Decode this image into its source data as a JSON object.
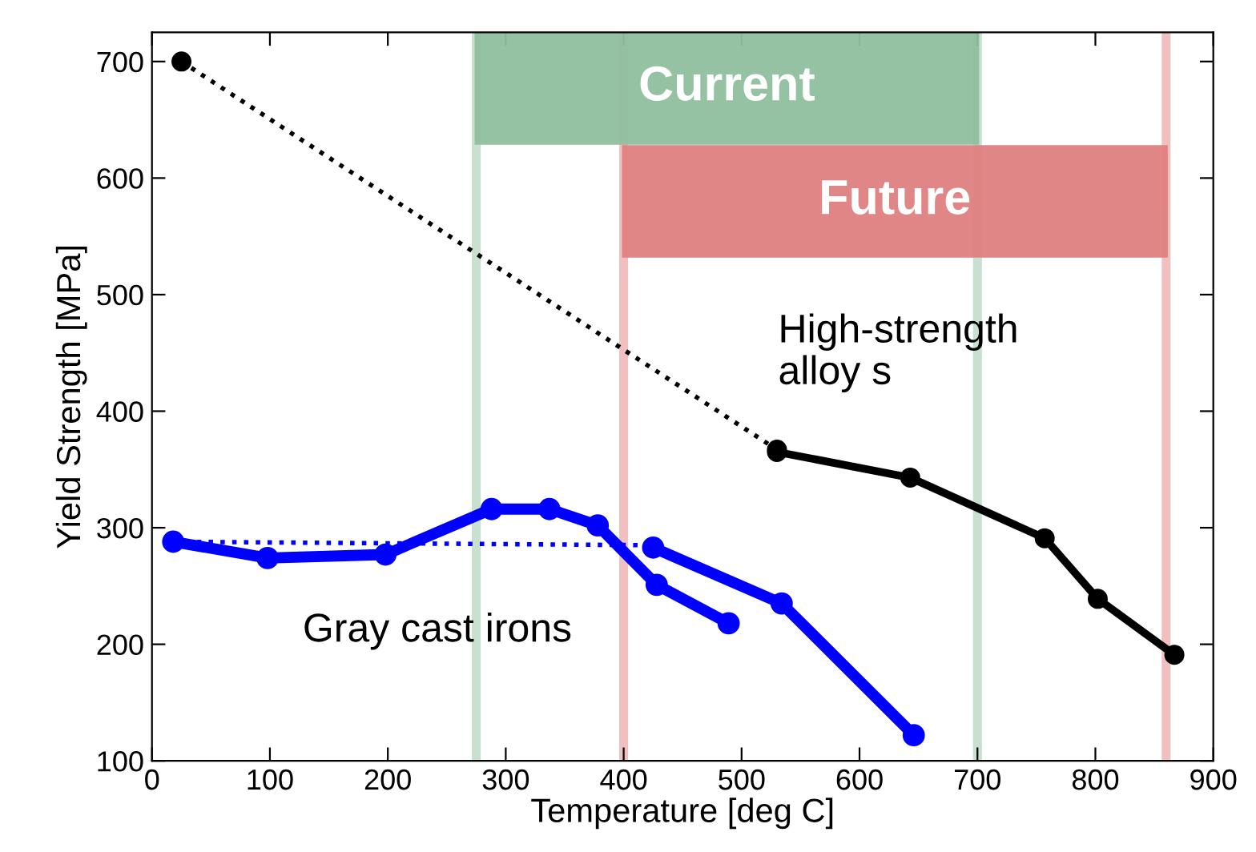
{
  "chart_data": {
    "type": "line",
    "xlabel": "Temperature [deg C]",
    "ylabel": "Yield Strength [MPa]",
    "xlim": [
      0,
      900
    ],
    "ylim": [
      100,
      725
    ],
    "xticks": [
      0,
      100,
      200,
      300,
      400,
      500,
      600,
      700,
      800,
      900
    ],
    "yticks": [
      100,
      200,
      300,
      400,
      500,
      600,
      700
    ],
    "grid": false,
    "legend": false,
    "marker": "circle",
    "series": [
      {
        "x": [
          25,
          530
        ],
        "values": [
          700,
          367
        ],
        "color": "#000000",
        "line_style": "dotted"
      },
      {
        "x": [
          530,
          643,
          757,
          802,
          867
        ],
        "values": [
          365,
          343,
          291,
          239,
          191
        ],
        "color": "#000000",
        "line_style": "solid"
      },
      {
        "x": [
          18,
          98,
          198,
          288,
          337,
          378,
          428,
          489
        ],
        "values": [
          288,
          274,
          277,
          316,
          316,
          302,
          251,
          218
        ],
        "color": "#0000ff",
        "line_style": "solid"
      },
      {
        "x": [
          425,
          534,
          646
        ],
        "values": [
          283,
          235,
          122
        ],
        "color": "#0000ff",
        "line_style": "solid"
      },
      {
        "x": [
          18,
          425
        ],
        "values": [
          288,
          285
        ],
        "color": "#0000ff",
        "line_style": "dotted",
        "marker": "none"
      }
    ],
    "bands": [
      {
        "axis": "x",
        "from": 275,
        "to": 700,
        "label": "Current",
        "color": "#8fbf9f"
      },
      {
        "axis": "x",
        "from": 400,
        "to": 860,
        "label": "Future",
        "color": "#e08080"
      }
    ],
    "ref_lines": [
      {
        "axis": "x",
        "value": 275,
        "color": "#c8e0cf"
      },
      {
        "axis": "x",
        "value": 700,
        "color": "#c8e0cf"
      },
      {
        "axis": "x",
        "value": 400,
        "color": "#f0c0c0"
      },
      {
        "axis": "x",
        "value": 860,
        "color": "#f0c0c0"
      }
    ],
    "annotations": [
      "High-strength\nalloy s",
      "Gray cast irons"
    ]
  }
}
